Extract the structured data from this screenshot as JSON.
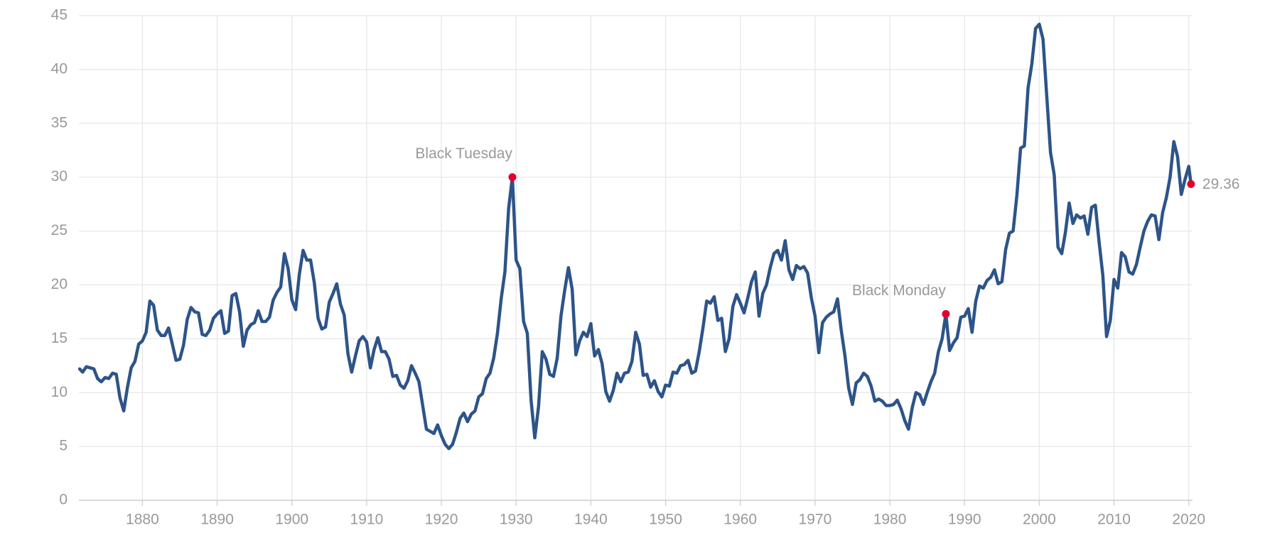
{
  "chart_data": {
    "type": "line",
    "x": [
      1871.6,
      1872,
      1872.5,
      1873,
      1873.5,
      1874,
      1874.5,
      1875,
      1875.5,
      1876,
      1876.5,
      1877,
      1877.5,
      1878,
      1878.5,
      1879,
      1879.5,
      1880,
      1880.5,
      1881,
      1881.5,
      1882,
      1882.5,
      1883,
      1883.5,
      1884,
      1884.5,
      1885,
      1885.5,
      1886,
      1886.5,
      1887,
      1887.5,
      1888,
      1888.5,
      1889,
      1889.5,
      1890,
      1890.5,
      1891,
      1891.5,
      1892,
      1892.5,
      1893,
      1893.5,
      1894,
      1894.5,
      1895,
      1895.5,
      1896,
      1896.5,
      1897,
      1897.5,
      1898,
      1898.5,
      1899,
      1899.5,
      1900,
      1900.5,
      1901,
      1901.5,
      1902,
      1902.5,
      1903,
      1903.5,
      1904,
      1904.5,
      1905,
      1905.5,
      1906,
      1906.5,
      1907,
      1907.5,
      1908,
      1908.5,
      1909,
      1909.5,
      1910,
      1910.5,
      1911,
      1911.5,
      1912,
      1912.5,
      1913,
      1913.5,
      1914,
      1914.5,
      1915,
      1915.5,
      1916,
      1916.5,
      1917,
      1917.5,
      1918,
      1918.5,
      1919,
      1919.5,
      1920,
      1920.5,
      1921,
      1921.5,
      1922,
      1922.5,
      1923,
      1923.5,
      1924,
      1924.5,
      1925,
      1925.5,
      1926,
      1926.5,
      1927,
      1927.5,
      1928,
      1928.5,
      1929,
      1929.5,
      1930,
      1930.5,
      1931,
      1931.5,
      1932,
      1932.5,
      1933,
      1933.5,
      1934,
      1934.5,
      1935,
      1935.5,
      1936,
      1936.5,
      1937,
      1937.5,
      1938,
      1938.5,
      1939,
      1939.5,
      1940,
      1940.5,
      1941,
      1941.5,
      1942,
      1942.5,
      1943,
      1943.5,
      1944,
      1944.5,
      1945,
      1945.5,
      1946,
      1946.5,
      1947,
      1947.5,
      1948,
      1948.5,
      1949,
      1949.5,
      1950,
      1950.5,
      1951,
      1951.5,
      1952,
      1952.5,
      1953,
      1953.5,
      1954,
      1954.5,
      1955,
      1955.5,
      1956,
      1956.5,
      1957,
      1957.5,
      1958,
      1958.5,
      1959,
      1959.5,
      1960,
      1960.5,
      1961,
      1961.5,
      1962,
      1962.5,
      1963,
      1963.5,
      1964,
      1964.5,
      1965,
      1965.5,
      1966,
      1966.5,
      1967,
      1967.5,
      1968,
      1968.5,
      1969,
      1969.5,
      1970,
      1970.5,
      1971,
      1971.5,
      1972,
      1972.5,
      1973,
      1973.5,
      1974,
      1974.5,
      1975,
      1975.5,
      1976,
      1976.5,
      1977,
      1977.5,
      1978,
      1978.5,
      1979,
      1979.5,
      1980,
      1980.5,
      1981,
      1981.5,
      1982,
      1982.5,
      1983,
      1983.5,
      1984,
      1984.5,
      1985,
      1985.5,
      1986,
      1986.5,
      1987,
      1987.5,
      1988,
      1988.5,
      1989,
      1989.5,
      1990,
      1990.5,
      1991,
      1991.5,
      1992,
      1992.5,
      1993,
      1993.5,
      1994,
      1994.5,
      1995,
      1995.5,
      1996,
      1996.5,
      1997,
      1997.5,
      1998,
      1998.5,
      1999,
      1999.5,
      2000,
      2000.5,
      2001,
      2001.5,
      2002,
      2002.5,
      2003,
      2003.5,
      2004,
      2004.5,
      2005,
      2005.5,
      2006,
      2006.5,
      2007,
      2007.5,
      2008,
      2008.5,
      2009,
      2009.5,
      2010,
      2010.5,
      2011,
      2011.5,
      2012,
      2012.5,
      2013,
      2013.5,
      2014,
      2014.5,
      2015,
      2015.5,
      2016,
      2016.5,
      2017,
      2017.5,
      2018,
      2018.5,
      2019,
      2019.5,
      2020,
      2020.3
    ],
    "series": [
      {
        "color": "#2d5489",
        "values": [
          12.2,
          11.9,
          12.4,
          12.3,
          12.2,
          11.3,
          11.0,
          11.4,
          11.3,
          11.8,
          11.7,
          9.5,
          8.3,
          10.5,
          12.3,
          12.9,
          14.5,
          14.8,
          15.6,
          18.5,
          18.1,
          15.8,
          15.3,
          15.3,
          16.0,
          14.5,
          13.0,
          13.1,
          14.4,
          16.8,
          17.9,
          17.5,
          17.4,
          15.4,
          15.3,
          15.8,
          16.9,
          17.3,
          17.6,
          15.5,
          15.7,
          19.0,
          19.2,
          17.5,
          14.3,
          15.8,
          16.3,
          16.5,
          17.6,
          16.6,
          16.6,
          17.0,
          18.6,
          19.3,
          19.8,
          22.9,
          21.5,
          18.6,
          17.7,
          21.0,
          23.2,
          22.3,
          22.3,
          20.2,
          16.9,
          15.9,
          16.1,
          18.4,
          19.2,
          20.1,
          18.2,
          17.2,
          13.6,
          11.9,
          13.4,
          14.8,
          15.2,
          14.7,
          12.3,
          14.0,
          15.1,
          13.8,
          13.8,
          13.1,
          11.5,
          11.6,
          10.7,
          10.4,
          11.1,
          12.5,
          11.8,
          11.0,
          8.8,
          6.6,
          6.4,
          6.2,
          7.0,
          6.0,
          5.2,
          4.8,
          5.2,
          6.3,
          7.6,
          8.1,
          7.3,
          8.0,
          8.3,
          9.6,
          9.9,
          11.3,
          11.8,
          13.2,
          15.5,
          18.7,
          21.2,
          27.1,
          30.0,
          22.3,
          21.5,
          16.6,
          15.5,
          9.3,
          5.8,
          8.7,
          13.8,
          13.1,
          11.7,
          11.5,
          13.2,
          17.1,
          19.5,
          21.6,
          19.6,
          13.5,
          14.8,
          15.6,
          15.2,
          16.4,
          13.4,
          14.0,
          12.7,
          10.1,
          9.2,
          10.2,
          11.8,
          11.0,
          11.8,
          11.9,
          12.9,
          15.6,
          14.5,
          11.6,
          11.7,
          10.5,
          11.1,
          10.1,
          9.6,
          10.7,
          10.6,
          11.9,
          11.8,
          12.5,
          12.6,
          13.0,
          11.8,
          12.0,
          13.8,
          16.0,
          18.5,
          18.3,
          18.9,
          16.7,
          16.9,
          13.8,
          15.0,
          18.0,
          19.1,
          18.3,
          17.4,
          18.8,
          20.3,
          21.2,
          17.1,
          19.2,
          20.0,
          21.6,
          22.9,
          23.2,
          22.3,
          24.1,
          21.4,
          20.5,
          21.8,
          21.5,
          21.7,
          21.1,
          18.8,
          17.1,
          13.7,
          16.5,
          17.0,
          17.3,
          17.5,
          18.7,
          15.8,
          13.4,
          10.4,
          8.9,
          10.9,
          11.2,
          11.8,
          11.5,
          10.6,
          9.2,
          9.4,
          9.2,
          8.8,
          8.8,
          8.9,
          9.3,
          8.5,
          7.4,
          6.6,
          8.6,
          10.0,
          9.8,
          8.9,
          10.0,
          11.0,
          11.8,
          13.8,
          15.0,
          17.3,
          13.9,
          14.6,
          15.1,
          17.0,
          17.1,
          17.8,
          15.6,
          18.5,
          19.9,
          19.7,
          20.4,
          20.7,
          21.4,
          20.1,
          20.3,
          23.3,
          24.8,
          25.0,
          28.3,
          32.7,
          32.9,
          38.3,
          40.5,
          43.8,
          44.2,
          42.8,
          37.5,
          32.3,
          30.2,
          23.5,
          22.9,
          24.9,
          27.6,
          25.7,
          26.5,
          26.2,
          26.4,
          24.7,
          27.2,
          27.4,
          24.0,
          20.9,
          15.2,
          16.7,
          20.5,
          19.7,
          23.0,
          22.6,
          21.2,
          21.0,
          21.9,
          23.5,
          25.0,
          25.9,
          26.5,
          26.4,
          24.2,
          26.7,
          28.1,
          30.0,
          33.3,
          31.9,
          28.4,
          29.8,
          31.0,
          29.36
        ]
      }
    ],
    "annotations": [
      {
        "text": "Black Tuesday",
        "x": 1929.5,
        "y": 30.0
      },
      {
        "text": "Black Monday",
        "x": 1987.5,
        "y": 17.3
      },
      {
        "text": "29.36",
        "x": 2020.3,
        "y": 29.36
      }
    ],
    "marker_color": "#e4002b",
    "xlim": [
      1871.5,
      2020.5
    ],
    "xticks": [
      1880,
      1890,
      1900,
      1910,
      1920,
      1930,
      1940,
      1950,
      1960,
      1970,
      1980,
      1990,
      2000,
      2010,
      2020
    ],
    "ylim": [
      0,
      45
    ],
    "yticks": [
      0,
      5,
      10,
      15,
      20,
      25,
      30,
      35,
      40,
      45
    ],
    "grid": true
  }
}
